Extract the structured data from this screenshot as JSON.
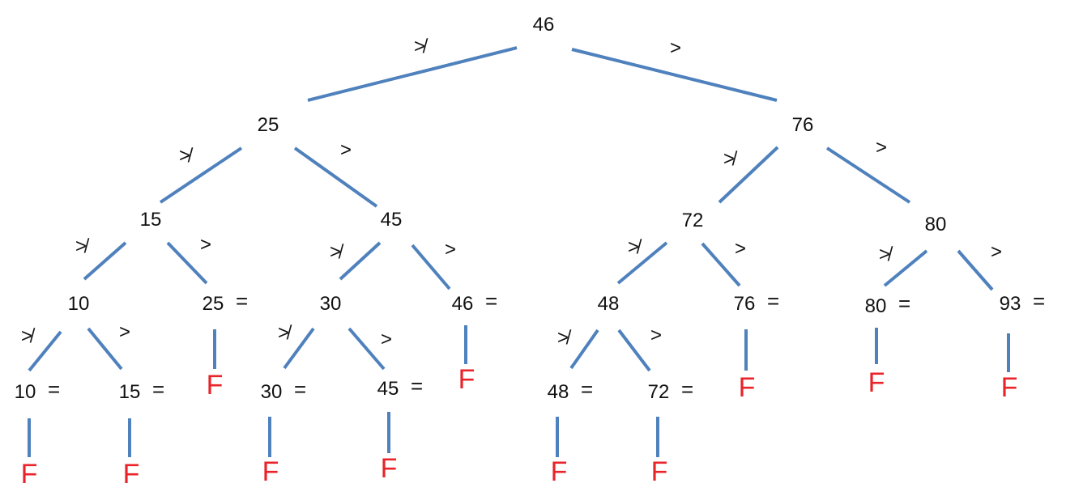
{
  "diagram": {
    "colors": {
      "edge": "#4F81BD",
      "leaf": "#E8242A",
      "text": "#111111"
    },
    "symbols": {
      "not_greater": "≯",
      "greater": ">",
      "equals": "=",
      "fail": "F"
    },
    "nodes": [
      {
        "id": "n46",
        "label": "46"
      },
      {
        "id": "n25",
        "label": "25"
      },
      {
        "id": "n76",
        "label": "76"
      },
      {
        "id": "n15",
        "label": "15"
      },
      {
        "id": "n45",
        "label": "45"
      },
      {
        "id": "n72",
        "label": "72"
      },
      {
        "id": "n80",
        "label": "80"
      },
      {
        "id": "n10",
        "label": "10"
      },
      {
        "id": "n25b",
        "label": "25",
        "equals": true
      },
      {
        "id": "n30",
        "label": "30"
      },
      {
        "id": "n46b",
        "label": "46",
        "equals": true
      },
      {
        "id": "n48",
        "label": "48"
      },
      {
        "id": "n76b",
        "label": "76",
        "equals": true
      },
      {
        "id": "n80b",
        "label": "80",
        "equals": true
      },
      {
        "id": "n93",
        "label": "93",
        "equals": true
      },
      {
        "id": "n10b",
        "label": "10",
        "equals": true
      },
      {
        "id": "n15b",
        "label": "15",
        "equals": true
      },
      {
        "id": "n30b",
        "label": "30",
        "equals": true
      },
      {
        "id": "n45b",
        "label": "45",
        "equals": true
      },
      {
        "id": "n48b",
        "label": "48",
        "equals": true
      },
      {
        "id": "n72b",
        "label": "72",
        "equals": true
      }
    ],
    "edges": [
      {
        "from": "n46",
        "to": "n25",
        "label": "≯"
      },
      {
        "from": "n46",
        "to": "n76",
        "label": ">"
      },
      {
        "from": "n25",
        "to": "n15",
        "label": "≯"
      },
      {
        "from": "n25",
        "to": "n45",
        "label": ">"
      },
      {
        "from": "n76",
        "to": "n72",
        "label": "≯"
      },
      {
        "from": "n76",
        "to": "n80",
        "label": ">"
      },
      {
        "from": "n15",
        "to": "n10",
        "label": "≯"
      },
      {
        "from": "n15",
        "to": "n25b",
        "label": ">"
      },
      {
        "from": "n45",
        "to": "n30",
        "label": "≯"
      },
      {
        "from": "n45",
        "to": "n46b",
        "label": ">"
      },
      {
        "from": "n72",
        "to": "n48",
        "label": "≯"
      },
      {
        "from": "n72",
        "to": "n76b",
        "label": ">"
      },
      {
        "from": "n80",
        "to": "n80b",
        "label": "≯"
      },
      {
        "from": "n80",
        "to": "n93",
        "label": ">"
      },
      {
        "from": "n10",
        "to": "n10b",
        "label": "≯"
      },
      {
        "from": "n10",
        "to": "n15b",
        "label": ">"
      },
      {
        "from": "n30",
        "to": "n30b",
        "label": "≯"
      },
      {
        "from": "n30",
        "to": "n45b",
        "label": ">"
      },
      {
        "from": "n48",
        "to": "n48b",
        "label": "≯"
      },
      {
        "from": "n48",
        "to": "n72b",
        "label": ">"
      }
    ],
    "leaves": [
      {
        "from": "n25b",
        "label": "F"
      },
      {
        "from": "n46b",
        "label": "F"
      },
      {
        "from": "n76b",
        "label": "F"
      },
      {
        "from": "n80b",
        "label": "F"
      },
      {
        "from": "n93",
        "label": "F"
      },
      {
        "from": "n10b",
        "label": "F"
      },
      {
        "from": "n15b",
        "label": "F"
      },
      {
        "from": "n30b",
        "label": "F"
      },
      {
        "from": "n45b",
        "label": "F"
      },
      {
        "from": "n48b",
        "label": "F"
      },
      {
        "from": "n72b",
        "label": "F"
      }
    ]
  }
}
